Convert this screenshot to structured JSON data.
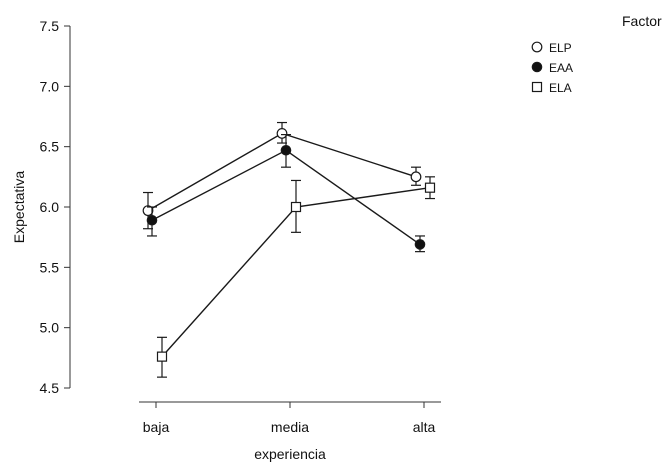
{
  "chart_data": {
    "type": "line",
    "title": "",
    "xlabel": "experiencia",
    "ylabel": "Expectativa",
    "categories": [
      "baja",
      "media",
      "alta"
    ],
    "ylim": [
      4.5,
      7.5
    ],
    "yticks": [
      "4.5",
      "5.0",
      "5.5",
      "6.0",
      "6.5",
      "7.0",
      "7.5"
    ],
    "grid": false,
    "legend": {
      "title": "Factor",
      "placement": "top-right"
    },
    "series": [
      {
        "name": "ELP",
        "marker": "circle-open",
        "values": [
          5.97,
          6.61,
          6.25
        ],
        "err_low": [
          5.82,
          6.53,
          6.18
        ],
        "err_high": [
          6.12,
          6.7,
          6.33
        ]
      },
      {
        "name": "EAA",
        "marker": "circle-filled",
        "values": [
          5.89,
          6.47,
          5.69
        ],
        "err_low": [
          5.76,
          6.33,
          5.63
        ],
        "err_high": [
          6.0,
          6.6,
          5.76
        ]
      },
      {
        "name": "ELA",
        "marker": "square-open",
        "values": [
          4.76,
          6.0,
          6.16
        ],
        "err_low": [
          4.59,
          5.79,
          6.07
        ],
        "err_high": [
          4.92,
          6.22,
          6.25
        ]
      }
    ],
    "colors": {
      "line": "#1a1a1a",
      "fill_open": "#ffffff",
      "fill_solid": "#111111"
    }
  }
}
